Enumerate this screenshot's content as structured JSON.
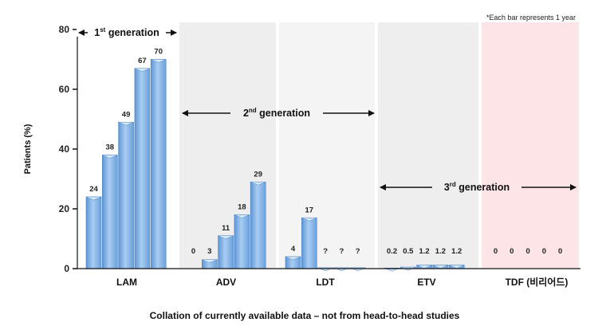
{
  "chart_data": {
    "type": "bar",
    "ylabel": "Patients (%)",
    "ylim": [
      0,
      80
    ],
    "yticks": [
      0,
      20,
      40,
      60,
      80
    ],
    "note": "*Each bar represents 1 year",
    "footer": "Collation of currently available data – not from head-to-head studies",
    "groups": [
      {
        "name": "LAM",
        "values": [
          24,
          38,
          49,
          67,
          70
        ],
        "labels": [
          "24",
          "38",
          "49",
          "67",
          "70"
        ],
        "background": "#ffffff"
      },
      {
        "name": "ADV",
        "values": [
          0,
          3,
          11,
          18,
          29
        ],
        "labels": [
          "0",
          "3",
          "11",
          "18",
          "29"
        ],
        "background": "#eeeeee"
      },
      {
        "name": "LDT",
        "values": [
          4,
          17,
          0.3,
          0.3,
          0.3
        ],
        "labels": [
          "4",
          "17",
          "?",
          "?",
          "?"
        ],
        "background": "#f4f4f4"
      },
      {
        "name": "ETV",
        "values": [
          0.2,
          0.5,
          1.2,
          1.2,
          1.2
        ],
        "labels": [
          "0.2",
          "0.5",
          "1.2",
          "1.2",
          "1.2"
        ],
        "background": "#eeeeee"
      },
      {
        "name": "TDF (비리어드)",
        "values": [
          0,
          0,
          0,
          0,
          0
        ],
        "labels": [
          "0",
          "0",
          "0",
          "0",
          "0"
        ],
        "background": "#fde4e6"
      }
    ],
    "generations": [
      {
        "base": "1",
        "sup": "st",
        "rest": " generation"
      },
      {
        "base": "2",
        "sup": "nd",
        "rest": " generation"
      },
      {
        "base": "3",
        "sup": "rd",
        "rest": " generation"
      }
    ],
    "colors": {
      "bar_fill": "#7fb2e6",
      "bar_top": "#d6e9fb",
      "bar_edge": "#4f86c6"
    }
  }
}
